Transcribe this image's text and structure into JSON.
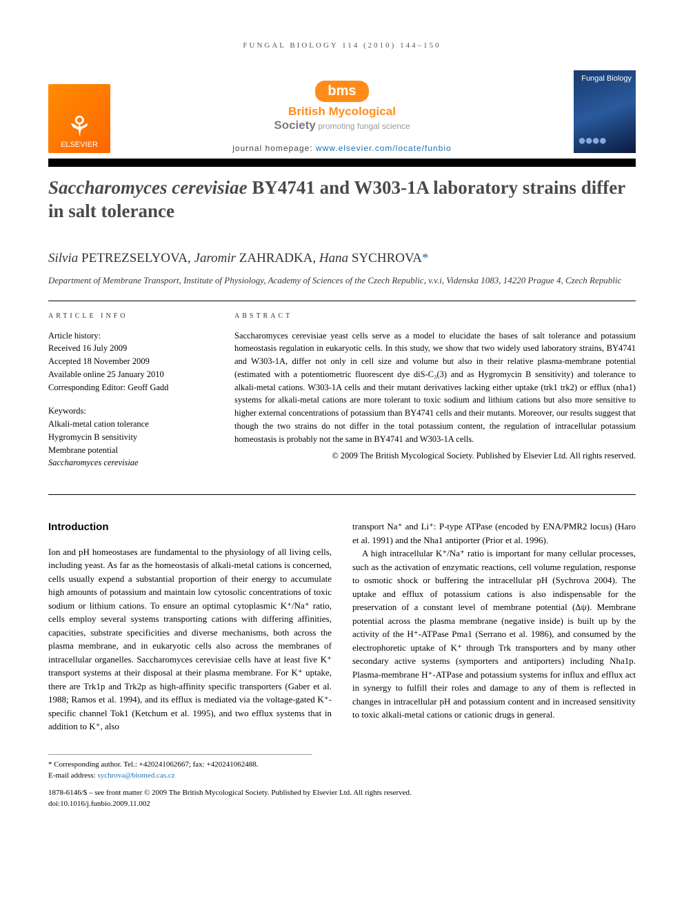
{
  "running_head": "FUNGAL BIOLOGY 114 (2010) 144–150",
  "publisher": {
    "elsevier": "ELSEVIER",
    "bms_pill": "bms",
    "bms_line1_a": "British Mycological",
    "bms_line2_a": "Society",
    "bms_line2_b": " promoting fungal science",
    "homepage_label": "journal homepage: ",
    "homepage_url": "www.elsevier.com/locate/funbio",
    "cover_title": "Fungal Biology"
  },
  "article": {
    "title_pre": "Saccharomyces cerevisiae",
    "title_rest": " BY4741 and W303-1A laboratory strains differ in salt tolerance",
    "authors_html": "Silvia PETREZSELYOVA, Jaromir ZAHRADKA, Hana SYCHROVA",
    "authors": [
      {
        "given": "Silvia",
        "surname": "PETREZSELYOVA"
      },
      {
        "given": "Jaromir",
        "surname": "ZAHRADKA"
      },
      {
        "given": "Hana",
        "surname": "SYCHROVA",
        "corr": true
      }
    ],
    "affiliation": "Department of Membrane Transport, Institute of Physiology, Academy of Sciences of the Czech Republic, v.v.i, Videnska 1083, 14220 Prague 4, Czech Republic"
  },
  "article_info": {
    "label": "ARTICLE INFO",
    "history_label": "Article history:",
    "received": "Received 16 July 2009",
    "accepted": "Accepted 18 November 2009",
    "online": "Available online 25 January 2010",
    "editor": "Corresponding Editor: Geoff Gadd",
    "keywords_label": "Keywords:",
    "keywords": [
      "Alkali-metal cation tolerance",
      "Hygromycin B sensitivity",
      "Membrane potential",
      "Saccharomyces cerevisiae"
    ]
  },
  "abstract": {
    "label": "ABSTRACT",
    "text": "Saccharomyces cerevisiae yeast cells serve as a model to elucidate the bases of salt tolerance and potassium homeostasis regulation in eukaryotic cells. In this study, we show that two widely used laboratory strains, BY4741 and W303-1A, differ not only in cell size and volume but also in their relative plasma-membrane potential (estimated with a potentiometric fluorescent dye diS-C₃(3) and as Hygromycin B sensitivity) and tolerance to alkali-metal cations. W303-1A cells and their mutant derivatives lacking either uptake (trk1 trk2) or efflux (nha1) systems for alkali-metal cations are more tolerant to toxic sodium and lithium cations but also more sensitive to higher external concentrations of potassium than BY4741 cells and their mutants. Moreover, our results suggest that though the two strains do not differ in the total potassium content, the regulation of intracellular potassium homeostasis is probably not the same in BY4741 and W303-1A cells.",
    "copyright": "© 2009 The British Mycological Society. Published by Elsevier Ltd. All rights reserved."
  },
  "intro": {
    "heading": "Introduction",
    "p1": "Ion and pH homeostases are fundamental to the physiology of all living cells, including yeast. As far as the homeostasis of alkali-metal cations is concerned, cells usually expend a substantial proportion of their energy to accumulate high amounts of potassium and maintain low cytosolic concentrations of toxic sodium or lithium cations. To ensure an optimal cytoplasmic K⁺/Na⁺ ratio, cells employ several systems transporting cations with differing affinities, capacities, substrate specificities and diverse mechanisms, both across the plasma membrane, and in eukaryotic cells also across the membranes of intracellular organelles. Saccharomyces cerevisiae cells have at least five K⁺ transport systems at their disposal at their plasma membrane. For K⁺ uptake, there are Trk1p and Trk2p as high-affinity specific transporters (Gaber et al. 1988; Ramos et al. 1994), and its efflux is mediated via the voltage-gated K⁺-specific channel Tok1 (Ketchum et al. 1995), and two efflux systems that in addition to K⁺, also",
    "p2": "transport Na⁺ and Li⁺: P-type ATPase (encoded by ENA/PMR2 locus) (Haro et al. 1991) and the Nha1 antiporter (Prior et al. 1996).",
    "p3": "A high intracellular K⁺/Na⁺ ratio is important for many cellular processes, such as the activation of enzymatic reactions, cell volume regulation, response to osmotic shock or buffering the intracellular pH (Sychrova 2004). The uptake and efflux of potassium cations is also indispensable for the preservation of a constant level of membrane potential (Δψ). Membrane potential across the plasma membrane (negative inside) is built up by the activity of the H⁺-ATPase Pma1 (Serrano et al. 1986), and consumed by the electrophoretic uptake of K⁺ through Trk transporters and by many other secondary active systems (symporters and antiporters) including Nha1p. Plasma-membrane H⁺-ATPase and potassium systems for influx and efflux act in synergy to fulfill their roles and damage to any of them is reflected in changes in intracellular pH and potassium content and in increased sensitivity to toxic alkali-metal cations or cationic drugs in general."
  },
  "footnotes": {
    "corr": "* Corresponding author. Tel.: +420241062667; fax: +420241062488.",
    "email_label": "E-mail address: ",
    "email": "sychrova@biomed.cas.cz"
  },
  "imprint": {
    "line1": "1878-6146/$ – see front matter © 2009 The British Mycological Society. Published by Elsevier Ltd. All rights reserved.",
    "line2": "doi:10.1016/j.funbio.2009.11.002"
  },
  "colors": {
    "link": "#1a6eb8",
    "orange": "#ff8c1a",
    "title_gray": "#4a4a4a"
  }
}
